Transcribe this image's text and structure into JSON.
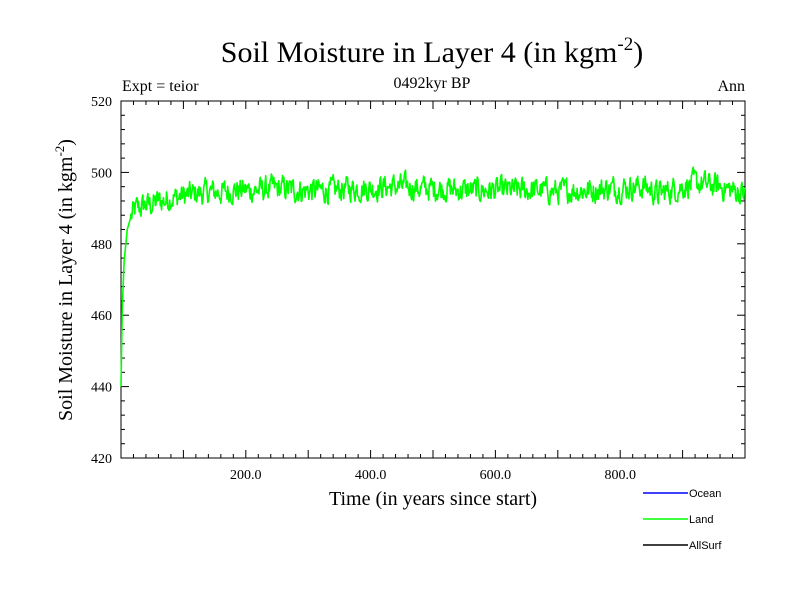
{
  "chart_data": {
    "type": "line",
    "title": "Soil Moisture in Layer 4 (in kgm",
    "title_superscript": "-2",
    "title_close": ")",
    "subtitle_left": "Expt = teior",
    "subtitle_center": "0492kyr BP",
    "subtitle_right": "Ann",
    "xlabel": "Time (in years since start)",
    "ylabel": "Soil Moisture in Layer 4 (in kgm",
    "ylabel_superscript": "-2",
    "ylabel_close": ")",
    "xlim": [
      0,
      1000
    ],
    "ylim": [
      420,
      520
    ],
    "x_ticks": [
      200,
      400,
      600,
      800
    ],
    "x_tick_labels": [
      "200.0",
      "400.0",
      "600.0",
      "800.0"
    ],
    "y_ticks": [
      420,
      440,
      460,
      480,
      500,
      520
    ],
    "y_tick_labels": [
      "420",
      "440",
      "460",
      "480",
      "500",
      "520"
    ],
    "grid": false,
    "legend_position": "bottom-right outside",
    "legend": [
      {
        "name": "Ocean",
        "color": "#0000ff"
      },
      {
        "name": "Land",
        "color": "#00ff00"
      },
      {
        "name": "AllSurf",
        "color": "#000000"
      }
    ],
    "series": [
      {
        "name": "Land",
        "color": "#00ff00",
        "x": [
          0,
          2,
          5,
          10,
          15,
          20,
          25,
          30,
          40,
          50,
          60,
          70,
          80,
          90,
          100,
          120,
          140,
          160,
          180,
          200,
          220,
          240,
          260,
          280,
          300,
          320,
          340,
          360,
          380,
          400,
          420,
          440,
          460,
          480,
          500,
          520,
          540,
          560,
          580,
          600,
          620,
          640,
          660,
          680,
          700,
          720,
          740,
          760,
          780,
          800,
          820,
          840,
          860,
          880,
          900,
          920,
          940,
          960,
          980,
          1000
        ],
        "values": [
          440,
          462,
          475,
          484,
          487,
          489,
          490,
          490,
          491,
          491,
          492,
          492,
          493,
          493,
          493.5,
          494,
          494.5,
          494.5,
          495,
          495,
          495,
          495.5,
          495.5,
          495,
          495,
          495,
          495,
          495.5,
          495.5,
          495.5,
          496,
          496,
          496,
          495.5,
          495.5,
          495.5,
          495,
          495,
          495,
          495,
          495,
          495,
          495,
          495,
          494.5,
          495,
          495,
          495,
          495.5,
          495.5,
          496,
          496,
          494,
          495,
          496,
          497,
          496.5,
          496,
          495,
          494
        ]
      }
    ]
  }
}
